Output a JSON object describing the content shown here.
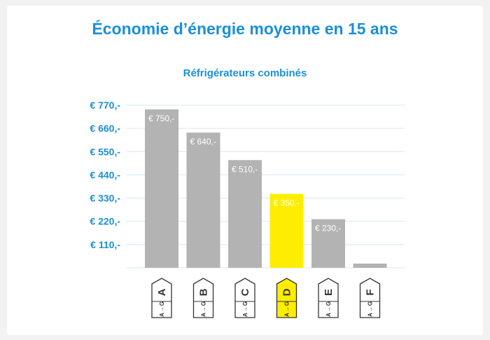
{
  "chart_data": {
    "type": "bar",
    "title": "Économie d’énergie moyenne en 15 ans",
    "subtitle": "Réfrigérateurs combinés",
    "categories": [
      "A",
      "B",
      "C",
      "D",
      "E",
      "F"
    ],
    "values": [
      750,
      640,
      510,
      350,
      230,
      20
    ],
    "data_labels": [
      "€ 750,-",
      "€ 640,-",
      "€ 510,-",
      "€ 350,-",
      "€ 230,-",
      ""
    ],
    "yticks": [
      110,
      220,
      330,
      440,
      550,
      660,
      770
    ],
    "ytick_labels": [
      "€ 110,-",
      "€ 220,-",
      "€ 330,-",
      "€ 440,-",
      "€ 550,-",
      "€ 660,-",
      "€ 770,-"
    ],
    "ylim": [
      0,
      770
    ],
    "grid": true,
    "highlight_category": "D",
    "badge_scale_top": "A",
    "badge_scale_bottom": "G",
    "colors": {
      "bar": "#b3b3b3",
      "highlight": "#ffed00",
      "accent": "#1a8fd8",
      "grid": "#d3e8f6"
    }
  }
}
